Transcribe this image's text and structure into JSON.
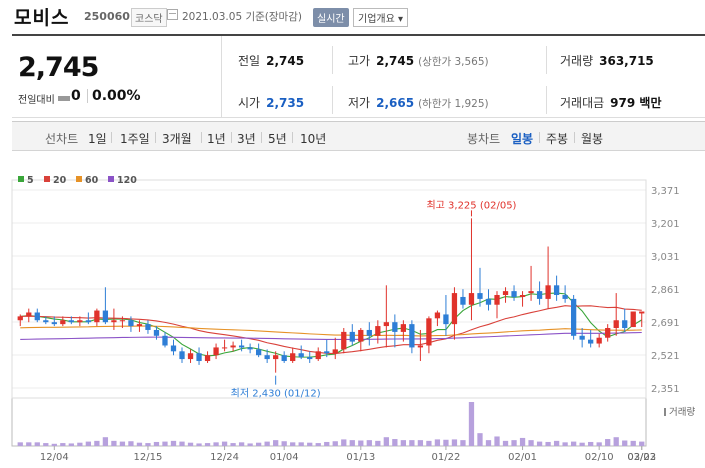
{
  "header": {
    "company": "모비스",
    "code": "250060",
    "market": "코스닥",
    "date": "2021.03.05 기준(장마감)",
    "realtime_label": "실시간",
    "overview_label": "기업개요 ▾"
  },
  "summary": {
    "price": "2,745",
    "change_label": "전일대비",
    "change_value": "0",
    "change_pct": "0.00%",
    "prev_close_label": "전일",
    "prev_close": "2,745",
    "open_label": "시가",
    "open": "2,735",
    "high_label": "고가",
    "high": "2,745",
    "upper_limit": "(상한가 3,565)",
    "low_label": "저가",
    "low": "2,665",
    "lower_limit": "(하한가 1,925)",
    "volume_label": "거래량",
    "volume": "363,715",
    "amount_label": "거래대금",
    "amount": "979 백만"
  },
  "tabs": {
    "line_label": "선차트",
    "periods": [
      "1일",
      "1주일",
      "3개월",
      "1년",
      "3년",
      "5년",
      "10년"
    ],
    "candle_label": "봉차트",
    "candles": [
      "일봉",
      "주봉",
      "월봉"
    ],
    "active_candle": "일봉"
  },
  "chart_data": {
    "type": "candlestick",
    "legend": [
      {
        "name": "5",
        "color": "#3aa63a"
      },
      {
        "name": "20",
        "color": "#d9413a"
      },
      {
        "name": "60",
        "color": "#e69227"
      },
      {
        "name": "120",
        "color": "#8b53c7"
      }
    ],
    "y_ticks": [
      "3,371",
      "3,201",
      "3,031",
      "2,861",
      "2,691",
      "2,521",
      "2,351"
    ],
    "ylim": [
      2351,
      3371
    ],
    "x_labels": [
      "12/04",
      "12/15",
      "12/24",
      "01/04",
      "01/13",
      "01/22",
      "02/01",
      "02/10",
      "02/23",
      "03/02"
    ],
    "high_annotation": "최고 3,225 (02/05)",
    "low_annotation": "최저 2,430 (01/12)",
    "volume_label": "거래량",
    "up_color": "#e0322b",
    "down_color": "#2e7ed6",
    "candles": [
      [
        2700,
        2730,
        2670,
        2720
      ],
      [
        2720,
        2760,
        2690,
        2740
      ],
      [
        2740,
        2760,
        2690,
        2700
      ],
      [
        2700,
        2720,
        2680,
        2690
      ],
      [
        2690,
        2720,
        2670,
        2680
      ],
      [
        2680,
        2720,
        2670,
        2700
      ],
      [
        2700,
        2720,
        2680,
        2690
      ],
      [
        2690,
        2720,
        2670,
        2700
      ],
      [
        2700,
        2740,
        2680,
        2690
      ],
      [
        2690,
        2760,
        2670,
        2750
      ],
      [
        2750,
        2870,
        2680,
        2690
      ],
      [
        2690,
        2760,
        2650,
        2700
      ],
      [
        2700,
        2720,
        2660,
        2700
      ],
      [
        2700,
        2720,
        2640,
        2670
      ],
      [
        2670,
        2700,
        2640,
        2680
      ],
      [
        2680,
        2700,
        2630,
        2650
      ],
      [
        2650,
        2670,
        2600,
        2620
      ],
      [
        2620,
        2640,
        2560,
        2570
      ],
      [
        2570,
        2600,
        2520,
        2540
      ],
      [
        2540,
        2560,
        2480,
        2500
      ],
      [
        2500,
        2550,
        2480,
        2530
      ],
      [
        2530,
        2560,
        2470,
        2490
      ],
      [
        2490,
        2540,
        2480,
        2520
      ],
      [
        2520,
        2580,
        2500,
        2560
      ],
      [
        2560,
        2600,
        2540,
        2560
      ],
      [
        2560,
        2590,
        2540,
        2570
      ],
      [
        2570,
        2600,
        2540,
        2560
      ],
      [
        2560,
        2580,
        2530,
        2550
      ],
      [
        2550,
        2580,
        2510,
        2520
      ],
      [
        2520,
        2550,
        2480,
        2500
      ],
      [
        2500,
        2540,
        2430,
        2520
      ],
      [
        2520,
        2540,
        2480,
        2490
      ],
      [
        2490,
        2560,
        2480,
        2530
      ],
      [
        2530,
        2570,
        2500,
        2510
      ],
      [
        2510,
        2540,
        2480,
        2500
      ],
      [
        2500,
        2560,
        2490,
        2540
      ],
      [
        2540,
        2600,
        2510,
        2530
      ],
      [
        2530,
        2610,
        2500,
        2550
      ],
      [
        2550,
        2660,
        2530,
        2640
      ],
      [
        2640,
        2680,
        2570,
        2590
      ],
      [
        2590,
        2660,
        2540,
        2650
      ],
      [
        2650,
        2690,
        2570,
        2620
      ],
      [
        2620,
        2700,
        2580,
        2670
      ],
      [
        2670,
        2880,
        2560,
        2690
      ],
      [
        2690,
        2730,
        2560,
        2640
      ],
      [
        2640,
        2700,
        2590,
        2680
      ],
      [
        2680,
        2700,
        2530,
        2560
      ],
      [
        2560,
        2650,
        2490,
        2570
      ],
      [
        2570,
        2720,
        2530,
        2710
      ],
      [
        2710,
        2750,
        2670,
        2740
      ],
      [
        2730,
        2830,
        2620,
        2680
      ],
      [
        2680,
        2870,
        2600,
        2840
      ],
      [
        2820,
        2860,
        2760,
        2780
      ],
      [
        2780,
        3225,
        2700,
        2840
      ],
      [
        2840,
        2970,
        2770,
        2810
      ],
      [
        2810,
        2860,
        2750,
        2780
      ],
      [
        2780,
        2850,
        2710,
        2830
      ],
      [
        2830,
        2870,
        2790,
        2850
      ],
      [
        2850,
        2880,
        2800,
        2820
      ],
      [
        2820,
        2850,
        2770,
        2830
      ],
      [
        2840,
        2980,
        2800,
        2850
      ],
      [
        2850,
        2900,
        2780,
        2810
      ],
      [
        2810,
        3080,
        2760,
        2880
      ],
      [
        2880,
        2930,
        2800,
        2830
      ],
      [
        2830,
        2880,
        2790,
        2810
      ],
      [
        2810,
        2830,
        2600,
        2620
      ],
      [
        2620,
        2660,
        2560,
        2600
      ],
      [
        2600,
        2650,
        2560,
        2580
      ],
      [
        2580,
        2630,
        2560,
        2610
      ],
      [
        2610,
        2680,
        2590,
        2660
      ],
      [
        2660,
        2840,
        2620,
        2700
      ],
      [
        2700,
        2760,
        2640,
        2660
      ],
      [
        2665,
        2745,
        2665,
        2745
      ],
      [
        2735,
        2745,
        2665,
        2745
      ]
    ],
    "volumes": [
      1,
      1,
      1,
      0.8,
      0.6,
      0.8,
      0.7,
      0.9,
      1.2,
      1.4,
      2.4,
      1.4,
      1.2,
      1.3,
      0.9,
      0.8,
      1.1,
      1.2,
      1.4,
      1.2,
      0.9,
      0.7,
      0.8,
      1,
      1.2,
      0.8,
      1,
      0.7,
      0.9,
      1.2,
      1.6,
      1.3,
      1,
      1,
      0.9,
      0.8,
      1.1,
      1.3,
      1.8,
      1.6,
      1.5,
      1.6,
      1.4,
      2.4,
      1.9,
      1.6,
      1.6,
      1.6,
      1.4,
      1.8,
      1.7,
      1.8,
      1.6,
      12,
      3.5,
      1.6,
      2.6,
      1.4,
      1.6,
      2.2,
      1.6,
      1.2,
      1.1,
      1.4,
      1,
      1.2,
      0.9,
      1.1,
      1,
      1.9,
      2.4,
      1.5,
      1.4,
      1.2
    ]
  }
}
